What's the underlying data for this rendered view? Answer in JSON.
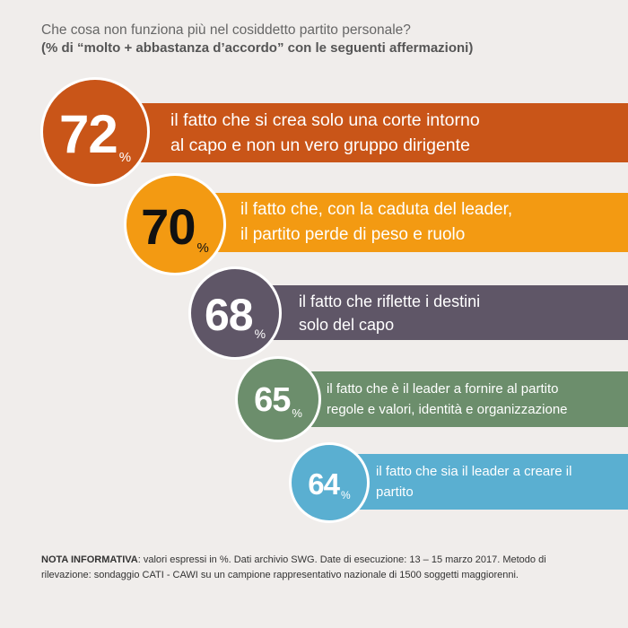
{
  "header": {
    "title": "Che cosa non funziona più nel cosiddetto partito personale?",
    "subtitle": "(% di “molto + abbastanza d’accordo” con le seguenti affermazioni)"
  },
  "chart_data": {
    "type": "bar",
    "title": "Che cosa non funziona più nel cosiddetto partito personale?",
    "subtitle": "(% di “molto + abbastanza d’accordo” con le seguenti affermazioni)",
    "unit": "%",
    "items": [
      {
        "value": 72,
        "pct_label": "%",
        "lines": [
          "il fatto che si crea solo una corte intorno",
          "al capo e non un vero gruppo dirigente"
        ],
        "color": "#c95518",
        "num_color": "#ffffff"
      },
      {
        "value": 70,
        "pct_label": "%",
        "lines": [
          "il fatto che, con la caduta del leader,",
          "il partito perde di peso e ruolo"
        ],
        "color": "#f39a12",
        "num_color": "#111111"
      },
      {
        "value": 68,
        "pct_label": "%",
        "lines": [
          "il fatto che riflette i destini",
          "solo del capo"
        ],
        "color": "#5f5667",
        "num_color": "#ffffff"
      },
      {
        "value": 65,
        "pct_label": "%",
        "lines": [
          "il fatto che è il leader a fornire al partito",
          "regole e valori, identità e organizzazione"
        ],
        "color": "#6c8e6c",
        "num_color": "#ffffff"
      },
      {
        "value": 64,
        "pct_label": "%",
        "lines": [
          "il fatto che sia il leader a creare il",
          "partito"
        ],
        "color": "#5aafd1",
        "num_color": "#ffffff"
      }
    ]
  },
  "note": {
    "label": "NOTA INFORMATIVA",
    "text": ": valori espressi in %. Dati archivio SWG. Date di esecuzione: 13 – 15 marzo 2017. Metodo di rilevazione: sondaggio CATI - CAWI su un campione rappresentativo nazionale di 1500 soggetti maggiorenni."
  }
}
